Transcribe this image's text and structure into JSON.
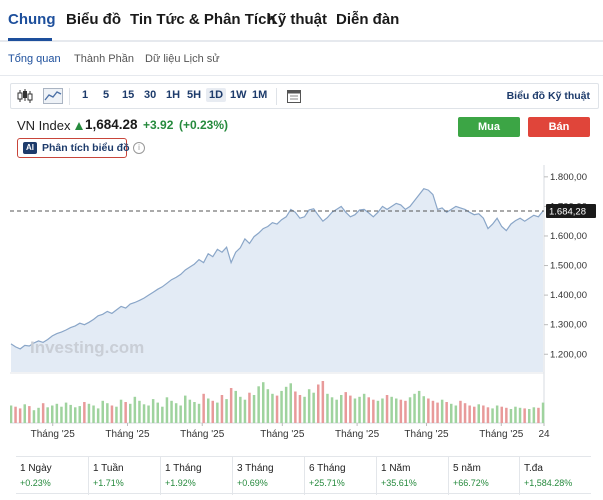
{
  "nav": {
    "tabs": [
      {
        "label": "Chung",
        "active": true
      },
      {
        "label": "Biểu đồ",
        "active": false
      },
      {
        "label": "Tin Tức & Phân Tích",
        "active": false
      },
      {
        "label": "Kỹ thuật",
        "active": false
      },
      {
        "label": "Diễn đàn",
        "active": false
      }
    ]
  },
  "subnav": {
    "items": [
      {
        "label": "Tổng quan",
        "active": true
      },
      {
        "label": "Thành Phần",
        "active": false
      },
      {
        "label": "Dữ liệu Lịch sử",
        "active": false
      }
    ]
  },
  "toolbar": {
    "icons": [
      "candlestick-icon",
      "area-chart-icon",
      "calendar-icon"
    ],
    "intervals": [
      "1",
      "5",
      "15",
      "30",
      "1H",
      "5H",
      "1D",
      "1W",
      "1M"
    ],
    "active_interval": "1D",
    "tech_chart_link": "Biểu đồ Kỹ thuật"
  },
  "quote": {
    "name": "VN Index",
    "price": "1,684.28",
    "change": "+3.92",
    "change_pct": "(+0.23%)",
    "direction": "up",
    "up_color": "#268a3d"
  },
  "actions": {
    "buy": "Mua",
    "sell": "Bán",
    "ai_badge": "AI",
    "ai_label": "Phân tích biểu đồ",
    "info_icon": "info-icon"
  },
  "chart_data": {
    "type": "area",
    "watermark": "Investing.com",
    "y_ticks": [
      "1.200,00",
      "1.300,00",
      "1.400,00",
      "1.500,00",
      "1.600,00",
      "1.700,00",
      "1.800,00"
    ],
    "y_tick_values": [
      1200,
      1300,
      1400,
      1500,
      1600,
      1700,
      1800
    ],
    "ylim": [
      1140,
      1840
    ],
    "last_price_label": "1.684,28",
    "last_price": 1684.28,
    "x_tick_labels": [
      "Tháng '25",
      "Tháng '25",
      "Tháng '25",
      "Tháng '25",
      "Tháng '25",
      "Tháng '25",
      "Tháng '25",
      "24"
    ],
    "x_tick_positions": [
      0.08,
      0.22,
      0.36,
      0.51,
      0.65,
      0.78,
      0.92,
      1.0
    ],
    "values": [
      1235,
      1225,
      1218,
      1230,
      1228,
      1238,
      1245,
      1240,
      1250,
      1262,
      1270,
      1275,
      1282,
      1290,
      1296,
      1305,
      1300,
      1308,
      1318,
      1330,
      1335,
      1345,
      1338,
      1350,
      1362,
      1356,
      1370,
      1375,
      1382,
      1390,
      1400,
      1410,
      1420,
      1428,
      1440,
      1452,
      1460,
      1470,
      1485,
      1495,
      1505,
      1520,
      1510,
      1540,
      1530,
      1555,
      1545,
      1562,
      1510,
      1545,
      1560,
      1590,
      1575,
      1598,
      1610,
      1625,
      1632,
      1645,
      1640,
      1655,
      1665,
      1690,
      1680,
      1660,
      1665,
      1688,
      1692,
      1670,
      1650,
      1662,
      1680,
      1690,
      1700,
      1680,
      1665,
      1672,
      1688,
      1690,
      1678,
      1665,
      1680,
      1700,
      1690,
      1700,
      1710,
      1705,
      1690,
      1700,
      1720,
      1740,
      1760,
      1755,
      1740,
      1690,
      1695,
      1680,
      1690,
      1700,
      1695,
      1690,
      1680,
      1672,
      1675,
      1660,
      1625,
      1640,
      1660,
      1632,
      1618,
      1640,
      1652,
      1660,
      1650,
      1660,
      1670,
      1665,
      1684.28
    ],
    "volumes": [
      30,
      28,
      25,
      32,
      29,
      22,
      26,
      34,
      27,
      30,
      33,
      28,
      35,
      31,
      27,
      29,
      36,
      33,
      30,
      25,
      38,
      34,
      30,
      28,
      40,
      36,
      33,
      45,
      38,
      32,
      30,
      41,
      35,
      28,
      44,
      38,
      34,
      30,
      47,
      40,
      36,
      33,
      50,
      42,
      38,
      35,
      48,
      41,
      60,
      55,
      45,
      40,
      52,
      48,
      63,
      70,
      58,
      50,
      47,
      55,
      62,
      68,
      54,
      48,
      45,
      58,
      52,
      66,
      72,
      50,
      44,
      40,
      48,
      53,
      47,
      42,
      45,
      50,
      44,
      40,
      38,
      42,
      48,
      45,
      42,
      40,
      38,
      44,
      50,
      55,
      46,
      42,
      38,
      35,
      40,
      36,
      33,
      30,
      38,
      34,
      30,
      28,
      32,
      30,
      27,
      25,
      30,
      28,
      26,
      24,
      28,
      26,
      25,
      24,
      27,
      26,
      35
    ],
    "volume_colors": [
      "#9fd39e",
      "#e89a9a"
    ],
    "line_color": "#8aa6c8",
    "fill_color": "#e3ebf5"
  },
  "performance": [
    {
      "label": "1 Ngày",
      "value": "+0.23%"
    },
    {
      "label": "1 Tuần",
      "value": "+1.71%"
    },
    {
      "label": "1 Tháng",
      "value": "+1.92%"
    },
    {
      "label": "3 Tháng",
      "value": "+0.69%"
    },
    {
      "label": "6 Tháng",
      "value": "+25.71%"
    },
    {
      "label": "1 Năm",
      "value": "+35.61%"
    },
    {
      "label": "5 năm",
      "value": "+66.72%"
    },
    {
      "label": "T.đa",
      "value": "+1,584.28%"
    }
  ]
}
